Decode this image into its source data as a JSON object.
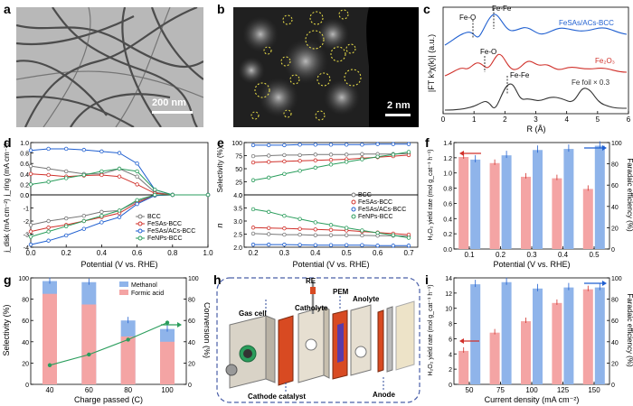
{
  "labels": {
    "a": "a",
    "b": "b",
    "c": "c",
    "d": "d",
    "e": "e",
    "f": "f",
    "g": "g",
    "h": "h",
    "i": "i"
  },
  "panel_a": {
    "scale": "200 nm"
  },
  "panel_b": {
    "scale": "2 nm"
  },
  "panel_c": {
    "ylabel": "|FT k³χ(k)| (a.u.)",
    "xlabel": "R (Å)",
    "xticks": [
      "0",
      "1",
      "2",
      "3",
      "4",
      "5",
      "6"
    ],
    "series": [
      {
        "name": "FeSAs/ACs-BCC",
        "color": "#1f5fd0"
      },
      {
        "name": "Fe₂O₃",
        "color": "#d0302a"
      },
      {
        "name": "Fe foil × 0.3",
        "color": "#333333"
      }
    ],
    "annotations": [
      "Fe-O",
      "Fe-Fe",
      "Fe-O",
      "Fe-Fe"
    ]
  },
  "panel_d": {
    "ylabel_top": "j_ring (mA cm⁻²)",
    "ylabel_bot": "j_disk (mA cm⁻²)",
    "xlabel": "Potential (V vs. RHE)",
    "xticks": [
      "0.0",
      "0.2",
      "0.4",
      "0.6",
      "0.8",
      "1.0"
    ],
    "yticks_top": [
      "0.0",
      "0.2",
      "0.4",
      "0.6",
      "0.8",
      "1.0"
    ],
    "yticks_bot": [
      "0",
      "-1",
      "-2",
      "-3",
      "-4"
    ],
    "legend": [
      "BCC",
      "FeSAs-BCC",
      "FeSAs/ACs-BCC",
      "FeNPs-BCC"
    ]
  },
  "panel_e": {
    "ylabel_top": "Selectivity (%)",
    "ylabel_bot": "n",
    "xlabel": "Potential (V vs. RHE)",
    "xticks": [
      "0.2",
      "0.3",
      "0.4",
      "0.5",
      "0.6",
      "0.7"
    ],
    "yticks_top": [
      "0",
      "25",
      "50",
      "75",
      "100"
    ],
    "yticks_bot": [
      "2.0",
      "2.5",
      "3.0",
      "3.5",
      "4.0"
    ],
    "legend": [
      "BCC",
      "FeSAs-BCC",
      "FeSAs/ACs-BCC",
      "FeNPs-BCC"
    ]
  },
  "panel_f": {
    "ylabel_left": "H₂O₂ yield rate (mol g_cat⁻¹ h⁻¹)",
    "ylabel_right": "Faradaic efficiency (%)",
    "xlabel": "Potential (V vs. RHE)",
    "xticks": [
      "0.1",
      "0.2",
      "0.3",
      "0.4",
      "0.5"
    ],
    "yticks_left": [
      "0.0",
      "0.2",
      "0.4",
      "0.6",
      "0.8",
      "1.0",
      "1.2",
      "1.4"
    ],
    "yticks_right": [
      "0",
      "20",
      "40",
      "60",
      "80",
      "100"
    ]
  },
  "panel_g": {
    "ylabel_left": "Selectivity (%)",
    "ylabel_right": "Conversion (%)",
    "xlabel": "Charge passed (C)",
    "xticks": [
      "40",
      "60",
      "80",
      "100"
    ],
    "yticks_left": [
      "0",
      "20",
      "40",
      "60",
      "80",
      "100"
    ],
    "yticks_right": [
      "0",
      "20",
      "40",
      "60",
      "80",
      "100"
    ],
    "legend": [
      "Methanol",
      "Formic acid"
    ]
  },
  "panel_h": {
    "labels": [
      "RE",
      "PEM",
      "Gas cell",
      "Catholyte",
      "Anolyte",
      "Cathode catalyst",
      "Anode"
    ]
  },
  "panel_i": {
    "ylabel_left": "H₂O₂ yield rate (mol g_cat⁻¹ h⁻¹)",
    "ylabel_right": "Faradaic efficiency (%)",
    "xlabel": "Current density (mA cm⁻²)",
    "xticks": [
      "50",
      "75",
      "100",
      "125",
      "150"
    ],
    "yticks_left": [
      "0",
      "2",
      "4",
      "6",
      "8",
      "10",
      "12",
      "14"
    ],
    "yticks_right": [
      "0",
      "20",
      "40",
      "60",
      "80",
      "100"
    ]
  },
  "chart_data": [
    {
      "type": "line",
      "panel": "c",
      "x": [
        0,
        1,
        2,
        3,
        4,
        5,
        6
      ],
      "series": [
        {
          "name": "FeSAs/ACs-BCC",
          "values": [
            0.6,
            1.2,
            1.45,
            0.95,
            0.75,
            0.8,
            0.65
          ]
        },
        {
          "name": "Fe₂O₃",
          "values": [
            0.35,
            0.55,
            0.8,
            0.5,
            0.6,
            0.4,
            0.35
          ]
        },
        {
          "name": "Fe foil × 0.3",
          "values": [
            0.02,
            0.1,
            0.5,
            0.2,
            0.3,
            0.15,
            0.05
          ]
        }
      ]
    },
    {
      "type": "line",
      "panel": "d-ring",
      "x": [
        0.0,
        0.1,
        0.2,
        0.3,
        0.4,
        0.5,
        0.6,
        0.7,
        0.8,
        1.0
      ],
      "series": [
        {
          "name": "BCC",
          "values": [
            0.55,
            0.5,
            0.45,
            0.4,
            0.4,
            0.5,
            0.35,
            0.05,
            0.0,
            0.0
          ]
        },
        {
          "name": "FeSAs-BCC",
          "values": [
            0.4,
            0.38,
            0.35,
            0.37,
            0.38,
            0.35,
            0.2,
            0.03,
            0.0,
            0.0
          ]
        },
        {
          "name": "FeSAs/ACs-BCC",
          "values": [
            0.85,
            0.88,
            0.88,
            0.86,
            0.83,
            0.8,
            0.6,
            0.1,
            0.0,
            0.0
          ]
        },
        {
          "name": "FeNPs-BCC",
          "values": [
            0.2,
            0.25,
            0.32,
            0.38,
            0.45,
            0.5,
            0.45,
            0.1,
            0.0,
            0.0
          ]
        }
      ]
    },
    {
      "type": "line",
      "panel": "d-disk",
      "x": [
        0.0,
        0.1,
        0.2,
        0.3,
        0.4,
        0.5,
        0.6,
        0.7,
        0.8,
        1.0
      ],
      "series": [
        {
          "name": "BCC",
          "values": [
            -2.3,
            -2.0,
            -1.8,
            -1.6,
            -1.3,
            -1.2,
            -0.5,
            0.0,
            0.0,
            0.0
          ]
        },
        {
          "name": "FeSAs-BCC",
          "values": [
            -2.8,
            -2.5,
            -2.3,
            -2.0,
            -1.7,
            -1.4,
            -0.6,
            -0.05,
            0.0,
            0.0
          ]
        },
        {
          "name": "FeSAs/ACs-BCC",
          "values": [
            -3.8,
            -3.5,
            -3.1,
            -2.6,
            -2.1,
            -1.7,
            -0.7,
            -0.05,
            0.0,
            0.0
          ]
        },
        {
          "name": "FeNPs-BCC",
          "values": [
            -3.2,
            -2.8,
            -2.4,
            -2.0,
            -1.6,
            -1.2,
            -0.4,
            0.0,
            0.0,
            0.0
          ]
        }
      ]
    },
    {
      "type": "line",
      "panel": "e-selectivity",
      "x": [
        0.2,
        0.25,
        0.3,
        0.35,
        0.4,
        0.45,
        0.5,
        0.55,
        0.6,
        0.65,
        0.7
      ],
      "series": [
        {
          "name": "BCC",
          "values": [
            74,
            75,
            76,
            76,
            77,
            77,
            77,
            78,
            78,
            78,
            79
          ]
        },
        {
          "name": "FeSAs-BCC",
          "values": [
            62,
            63,
            64,
            65,
            66,
            67,
            68,
            70,
            72,
            74,
            76
          ]
        },
        {
          "name": "FeSAs/ACs-BCC",
          "values": [
            95,
            95,
            95,
            96,
            96,
            96,
            96,
            96,
            97,
            97,
            97
          ]
        },
        {
          "name": "FeNPs-BCC",
          "values": [
            28,
            33,
            40,
            46,
            52,
            58,
            63,
            68,
            73,
            77,
            82
          ]
        }
      ]
    },
    {
      "type": "line",
      "panel": "e-n",
      "x": [
        0.2,
        0.25,
        0.3,
        0.35,
        0.4,
        0.45,
        0.5,
        0.55,
        0.6,
        0.65,
        0.7
      ],
      "series": [
        {
          "name": "BCC",
          "values": [
            2.52,
            2.5,
            2.48,
            2.48,
            2.46,
            2.46,
            2.46,
            2.45,
            2.44,
            2.44,
            2.42
          ]
        },
        {
          "name": "FeSAs-BCC",
          "values": [
            2.75,
            2.73,
            2.72,
            2.7,
            2.68,
            2.66,
            2.64,
            2.6,
            2.56,
            2.52,
            2.48
          ]
        },
        {
          "name": "FeSAs/ACs-BCC",
          "values": [
            2.1,
            2.1,
            2.1,
            2.09,
            2.08,
            2.08,
            2.08,
            2.08,
            2.06,
            2.06,
            2.06
          ]
        },
        {
          "name": "FeNPs-BCC",
          "values": [
            3.45,
            3.35,
            3.2,
            3.08,
            2.95,
            2.85,
            2.74,
            2.64,
            2.55,
            2.46,
            2.36
          ]
        }
      ]
    },
    {
      "type": "bar",
      "panel": "f",
      "categories": [
        "0.1",
        "0.2",
        "0.3",
        "0.4",
        "0.5"
      ],
      "series": [
        {
          "name": "H₂O₂ yield rate",
          "values": [
            1.21,
            1.13,
            0.95,
            0.93,
            0.79
          ]
        },
        {
          "name": "Faradaic efficiency",
          "values": [
            84,
            88,
            93,
            94,
            97
          ]
        }
      ]
    },
    {
      "type": "bar",
      "panel": "g",
      "categories": [
        "40",
        "60",
        "80",
        "100"
      ],
      "series": [
        {
          "name": "Methanol",
          "values": [
            97,
            96,
            60,
            52
          ]
        },
        {
          "name": "Formic acid",
          "values": [
            85,
            75,
            45,
            40
          ]
        },
        {
          "name": "Conversion",
          "values": [
            18,
            28,
            42,
            58
          ]
        }
      ]
    },
    {
      "type": "bar",
      "panel": "i",
      "categories": [
        "50",
        "75",
        "100",
        "125",
        "150"
      ],
      "series": [
        {
          "name": "H₂O₂ yield rate",
          "values": [
            4.4,
            6.8,
            8.3,
            10.7,
            12.5
          ]
        },
        {
          "name": "Faradaic efficiency",
          "values": [
            94,
            96,
            90,
            91,
            91
          ]
        }
      ]
    }
  ]
}
